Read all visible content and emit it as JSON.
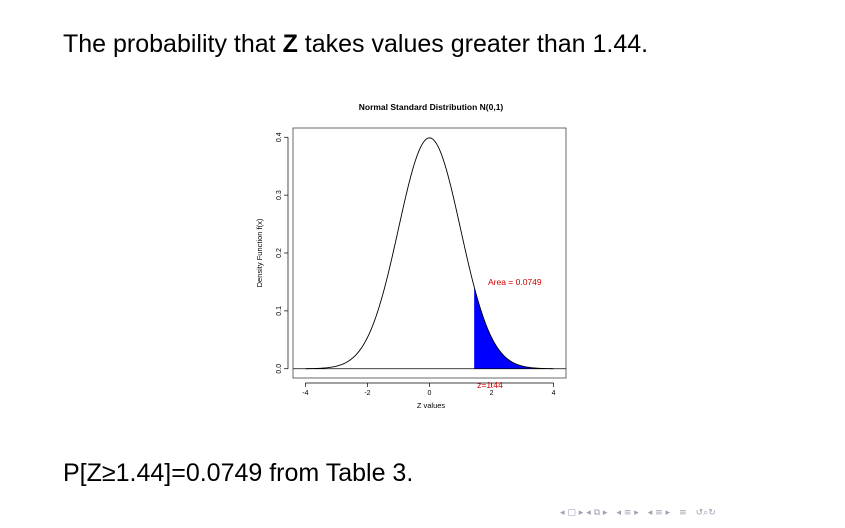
{
  "slide": {
    "title_prefix": "The probability that ",
    "title_var": "Z",
    "title_suffix": " takes values greater than 1.44.",
    "statement": "P[Z≥1.44]=0.0749 from Table 3."
  },
  "navigation": {
    "icons": [
      "nav-first-icon",
      "nav-frame-icon",
      "nav-section-icon",
      "nav-subsection-icon",
      "nav-outline-icon",
      "nav-search-icon"
    ]
  },
  "chart_data": {
    "type": "area",
    "title": "Normal Standard Distribution N(0,1)",
    "xlabel": "Z values",
    "ylabel": "Density Function f(x)",
    "xlim": [
      -4.4,
      4.4
    ],
    "ylim": [
      -0.016,
      0.416
    ],
    "x_ticks": [
      -4,
      -2,
      0,
      2,
      4
    ],
    "x_tick_labels": [
      "-4",
      "-2",
      "0",
      "2",
      "4"
    ],
    "y_ticks": [
      0.0,
      0.1,
      0.2,
      0.3,
      0.4
    ],
    "y_tick_labels": [
      "0.0",
      "0.1",
      "0.2",
      "0.3",
      "0.4"
    ],
    "curve": {
      "distribution": "normal",
      "mean": 0,
      "sd": 1,
      "x_range": [
        -4,
        4
      ]
    },
    "shaded_region": {
      "from": 1.44,
      "to": 4,
      "color": "#0000ff"
    },
    "baseline_y": 0,
    "annotations": [
      {
        "text": "Area = 0.0749",
        "x": 2.75,
        "y": 0.145,
        "color": "#cc0000"
      },
      {
        "text": "z=1.44",
        "x": 1.95,
        "y": -0.033,
        "color": "#cc0000"
      }
    ],
    "grid": false
  }
}
